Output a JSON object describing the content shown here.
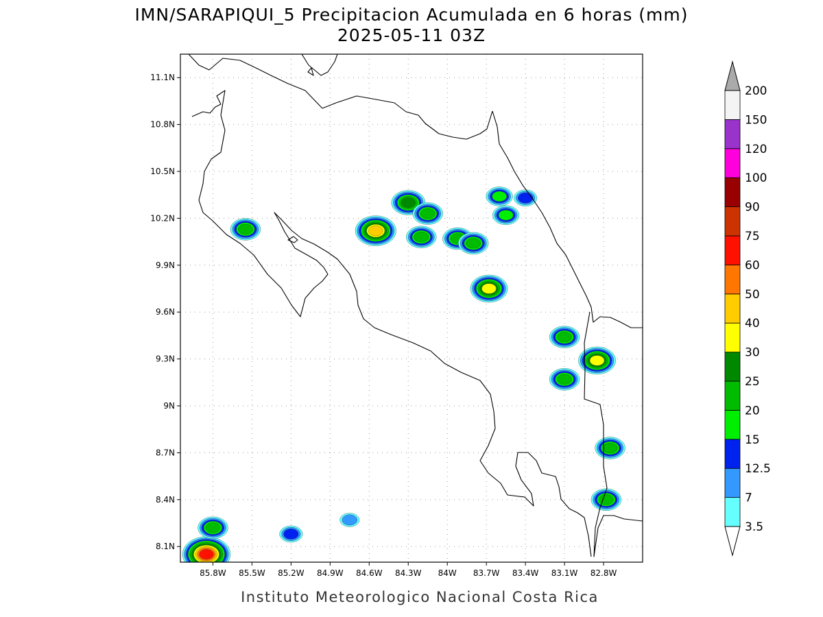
{
  "title": {
    "line1": "IMN/SARAPIQUI_5 Precipitacion Acumulada en 6 horas (mm)",
    "line2": "2025-05-11 03Z"
  },
  "credit": "Instituto Meteorologico Nacional Costa Rica",
  "map": {
    "lon_range": [
      -86.05,
      -82.5
    ],
    "lat_range": [
      8.0,
      11.25
    ],
    "x_ticks": [
      {
        "lon": -85.8,
        "label": "85.8W"
      },
      {
        "lon": -85.5,
        "label": "85.5W"
      },
      {
        "lon": -85.2,
        "label": "85.2W"
      },
      {
        "lon": -84.9,
        "label": "84.9W"
      },
      {
        "lon": -84.6,
        "label": "84.6W"
      },
      {
        "lon": -84.3,
        "label": "84.3W"
      },
      {
        "lon": -84.0,
        "label": "84W"
      },
      {
        "lon": -83.7,
        "label": "83.7W"
      },
      {
        "lon": -83.4,
        "label": "83.4W"
      },
      {
        "lon": -83.1,
        "label": "83.1W"
      },
      {
        "lon": -82.8,
        "label": "82.8W"
      }
    ],
    "y_ticks": [
      {
        "lat": 11.1,
        "label": "11.1N"
      },
      {
        "lat": 10.8,
        "label": "10.8N"
      },
      {
        "lat": 10.5,
        "label": "10.5N"
      },
      {
        "lat": 10.2,
        "label": "10.2N"
      },
      {
        "lat": 9.9,
        "label": "9.9N"
      },
      {
        "lat": 9.6,
        "label": "9.6N"
      },
      {
        "lat": 9.3,
        "label": "9.3N"
      },
      {
        "lat": 9.0,
        "label": "9N"
      },
      {
        "lat": 8.7,
        "label": "8.7N"
      },
      {
        "lat": 8.4,
        "label": "8.4N"
      },
      {
        "lat": 8.1,
        "label": "8.1N"
      }
    ],
    "grid": true
  },
  "colorbar": {
    "levels": [
      "3.5",
      "7",
      "12.5",
      "15",
      "20",
      "25",
      "30",
      "40",
      "50",
      "60",
      "75",
      "90",
      "100",
      "120",
      "150",
      "200"
    ],
    "colors": [
      "#66ffff",
      "#3399ff",
      "#0022ee",
      "#00ee00",
      "#00bb00",
      "#008800",
      "#ffff00",
      "#ffcc00",
      "#ff7700",
      "#ff1100",
      "#cc3300",
      "#990000",
      "#ff00dd",
      "#9933cc",
      "#f4f4f4",
      "#aaaaaa"
    ]
  },
  "rain_cells": [
    {
      "lon": -85.55,
      "lat": 10.13,
      "max_level": 5
    },
    {
      "lon": -84.55,
      "lat": 10.12,
      "max_level": 8
    },
    {
      "lon": -84.3,
      "lat": 10.3,
      "max_level": 6
    },
    {
      "lon": -84.15,
      "lat": 10.23,
      "max_level": 5
    },
    {
      "lon": -84.2,
      "lat": 10.08,
      "max_level": 5
    },
    {
      "lon": -83.92,
      "lat": 10.07,
      "max_level": 5
    },
    {
      "lon": -83.8,
      "lat": 10.04,
      "max_level": 5
    },
    {
      "lon": -83.6,
      "lat": 10.34,
      "max_level": 4
    },
    {
      "lon": -83.55,
      "lat": 10.22,
      "max_level": 4
    },
    {
      "lon": -83.4,
      "lat": 10.33,
      "max_level": 3
    },
    {
      "lon": -83.68,
      "lat": 9.75,
      "max_level": 7
    },
    {
      "lon": -83.1,
      "lat": 9.44,
      "max_level": 5
    },
    {
      "lon": -83.1,
      "lat": 9.17,
      "max_level": 5
    },
    {
      "lon": -82.85,
      "lat": 9.29,
      "max_level": 7
    },
    {
      "lon": -82.75,
      "lat": 8.73,
      "max_level": 5
    },
    {
      "lon": -82.78,
      "lat": 8.4,
      "max_level": 5
    },
    {
      "lon": -85.85,
      "lat": 8.05,
      "max_level": 10
    },
    {
      "lon": -85.8,
      "lat": 8.22,
      "max_level": 5
    },
    {
      "lon": -85.2,
      "lat": 8.18,
      "max_level": 3
    },
    {
      "lon": -84.75,
      "lat": 8.27,
      "max_level": 2
    }
  ]
}
